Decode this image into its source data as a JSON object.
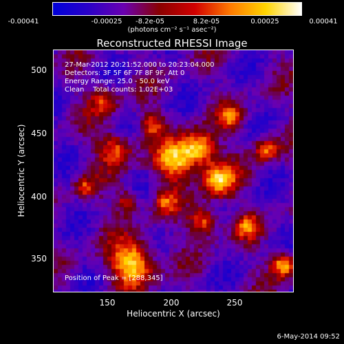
{
  "colorbar": {
    "ticks": [
      "-0.00041",
      "-0.00025",
      "-8.2e-05",
      "8.2e-05",
      "0.00025",
      "0.00041"
    ],
    "unit": "(photons cm⁻² s⁻¹ asec⁻²)",
    "colors": [
      "#0000d8",
      "#2a00c8",
      "#6a00b0",
      "#8a0000",
      "#d20000",
      "#ff7a00",
      "#ffd400",
      "#ffffff"
    ]
  },
  "title": "Reconstructed RHESSI Image",
  "annotations": {
    "time_range": "27-Mar-2012 20:21:52.000 to 20:23:04.000",
    "detectors": "Detectors: 3F 5F 6F 7F 8F 9F, Att 0",
    "energy": "Energy Range: 25.0 - 50.0 keV",
    "clean": "Clean    Total counts: 1.02E+03",
    "peak": "Position of Peak = [288,345]"
  },
  "axes": {
    "xlabel": "Heliocentric X (arcsec)",
    "ylabel": "Heliocentric Y (arcsec)",
    "xticks": [
      "150",
      "200",
      "250"
    ],
    "yticks": [
      "500",
      "450",
      "400",
      "350"
    ],
    "xrange": [
      105,
      295
    ],
    "yrange": [
      323,
      515
    ]
  },
  "footer": {
    "date": "6-May-2014 09:52"
  }
}
